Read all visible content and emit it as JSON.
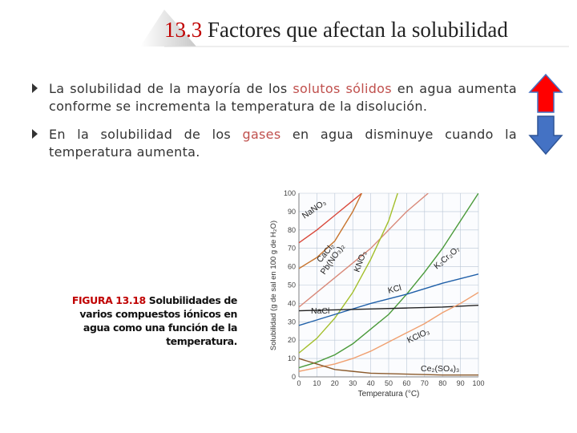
{
  "header": {
    "number": "13.3",
    "title": "Factores que afectan la solubilidad"
  },
  "bullets": [
    [
      "La solubilidad de la mayoría de los ",
      "solutos sólidos",
      " en agua aumenta conforme se incrementa la temperatura de la disolución."
    ],
    [
      "En la solubilidad de los ",
      "gases",
      " en agua disminuye cuando la temperatura aumenta."
    ]
  ],
  "caption": {
    "label": "FIGURA 13.18",
    "text": "Solubilidades de varios compuestos iónicos en agua como una función de la temperatura."
  },
  "chart_data": {
    "type": "line",
    "ylabel": "Solubilidad (g de sal en 100 g de H₂O)",
    "xlabel": "Temperatura (°C)",
    "xlim": [
      0,
      100
    ],
    "xticks": [
      0,
      10,
      20,
      30,
      40,
      50,
      60,
      70,
      80,
      90,
      100
    ],
    "ylim": [
      0,
      100
    ],
    "yticks": [
      0,
      10,
      20,
      30,
      40,
      50,
      60,
      70,
      80,
      90,
      100
    ],
    "grid": true,
    "series": [
      {
        "name": "NaNO₃",
        "color": "#d9483b",
        "x": [
          0,
          10,
          20,
          30,
          35
        ],
        "values": [
          73,
          80,
          88,
          96,
          100
        ]
      },
      {
        "name": "CaCl₂",
        "color": "#c8752f",
        "x": [
          0,
          10,
          20,
          30,
          35
        ],
        "values": [
          59,
          65,
          74,
          90,
          100
        ]
      },
      {
        "name": "Pb(NO₃)₂",
        "color": "#d98a7a",
        "x": [
          0,
          20,
          40,
          60,
          72
        ],
        "values": [
          38,
          54,
          70,
          90,
          100
        ]
      },
      {
        "name": "KNO₃",
        "color": "#a3bf2a",
        "x": [
          0,
          10,
          20,
          30,
          40,
          50,
          55
        ],
        "values": [
          13,
          21,
          32,
          46,
          64,
          85,
          100
        ]
      },
      {
        "name": "K₂Cr₂O₇",
        "color": "#4a9a3a",
        "x": [
          0,
          10,
          20,
          30,
          40,
          50,
          60,
          70,
          80,
          90,
          100
        ],
        "values": [
          5,
          8,
          12,
          18,
          26,
          34,
          45,
          57,
          70,
          85,
          100
        ]
      },
      {
        "name": "KCl",
        "color": "#1f5fa8",
        "x": [
          0,
          20,
          40,
          60,
          80,
          100
        ],
        "values": [
          28,
          34,
          40,
          45,
          51,
          56
        ]
      },
      {
        "name": "NaCl",
        "color": "#222222",
        "x": [
          0,
          20,
          40,
          60,
          80,
          100
        ],
        "values": [
          36,
          36.5,
          37,
          37.5,
          38,
          39
        ]
      },
      {
        "name": "KClO₃",
        "color": "#f0a070",
        "x": [
          0,
          10,
          20,
          30,
          40,
          50,
          60,
          70,
          80,
          90,
          100
        ],
        "values": [
          3,
          5,
          7,
          10,
          14,
          19,
          24,
          29,
          35,
          40,
          46
        ]
      },
      {
        "name": "Ce₂(SO₄)₃",
        "color": "#8b5a2b",
        "x": [
          0,
          10,
          20,
          30,
          40,
          60,
          80,
          100
        ],
        "values": [
          10,
          7,
          4,
          3,
          2,
          1.5,
          1,
          1
        ]
      }
    ]
  }
}
